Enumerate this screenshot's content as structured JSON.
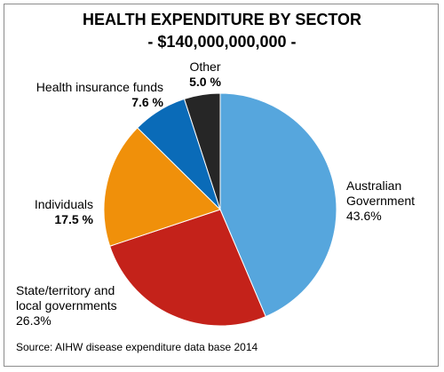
{
  "chart_data": {
    "type": "pie",
    "title": "HEALTH EXPENDITURE BY SECTOR",
    "subtitle": "- $140,000,000,000 -",
    "start_angle_deg": 0,
    "direction": "clockwise",
    "slices": [
      {
        "label_lines": [
          "Australian",
          "Government"
        ],
        "value": 43.6,
        "value_label": "43.6%",
        "color": "#56a6dd"
      },
      {
        "label_lines": [
          "State/territory and",
          "local governments"
        ],
        "value": 26.3,
        "value_label": "26.3%",
        "color": "#c4221a"
      },
      {
        "label_lines": [
          "Individuals"
        ],
        "value": 17.5,
        "value_label": "17.5 %",
        "color": "#f0900a"
      },
      {
        "label_lines": [
          "Health insurance funds"
        ],
        "value": 7.6,
        "value_label": "7.6 %",
        "color": "#0a6bb8"
      },
      {
        "label_lines": [
          "Other"
        ],
        "value": 5.0,
        "value_label": "5.0 %",
        "color": "#262626"
      }
    ],
    "source": "Source: AIHW disease expenditure data base 2014"
  }
}
